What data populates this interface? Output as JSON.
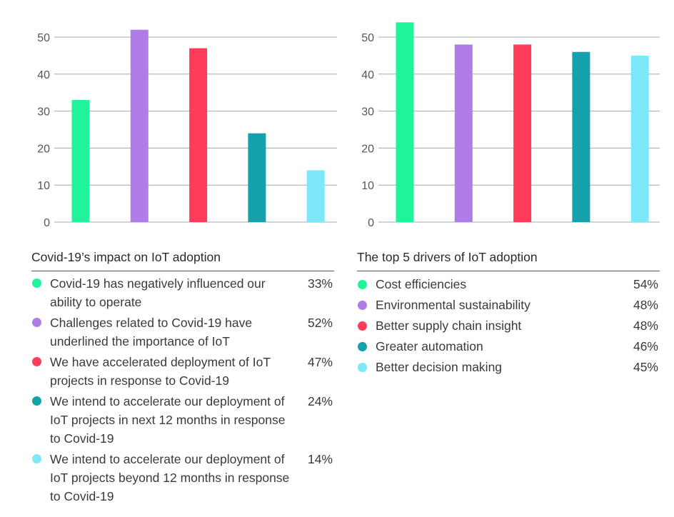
{
  "chart_data": [
    {
      "type": "bar",
      "title": "Covid-19’s impact on IoT adoption",
      "ylim": [
        0,
        50
      ],
      "yticks": [
        0,
        10,
        20,
        30,
        40,
        50
      ],
      "grid": true,
      "categories": [
        "Covid-19 has negatively influenced our ability to operate",
        "Challenges related to Covid-19 have underlined the importance of IoT",
        "We have accelerated deployment of IoT projects in response to Covid-19",
        "We intend to accelerate our deployment of IoT projects in next 12 months in response to Covid-19",
        "We intend to accelerate our deployment of IoT projects beyond 12 months in response to Covid-19"
      ],
      "values": [
        33,
        52,
        47,
        24,
        14
      ],
      "value_labels": [
        "33%",
        "52%",
        "47%",
        "24%",
        "14%"
      ],
      "colors": [
        "#1ff49a",
        "#b07ce8",
        "#ff3c5a",
        "#13a2ad",
        "#7de8fa"
      ]
    },
    {
      "type": "bar",
      "title": "The top 5 drivers of IoT adoption",
      "ylim": [
        0,
        50
      ],
      "yticks": [
        0,
        10,
        20,
        30,
        40,
        50
      ],
      "grid": true,
      "categories": [
        "Cost efficiencies",
        "Environmental sustainability",
        "Better supply chain insight",
        "Greater automation",
        "Better decision making"
      ],
      "values": [
        54,
        48,
        48,
        46,
        45
      ],
      "value_labels": [
        "54%",
        "48%",
        "48%",
        "46%",
        "45%"
      ],
      "colors": [
        "#1ff49a",
        "#b07ce8",
        "#ff3c5a",
        "#13a2ad",
        "#7de8fa"
      ]
    }
  ]
}
